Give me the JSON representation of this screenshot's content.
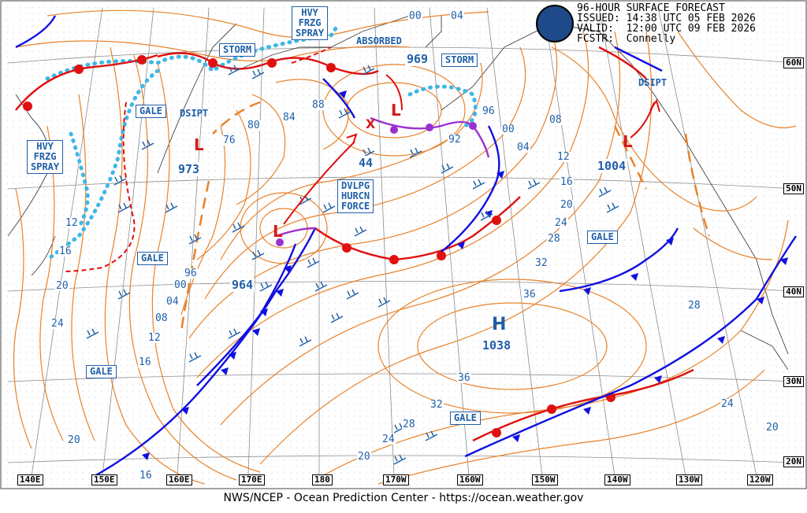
{
  "header": {
    "line1": "96-HOUR SURFACE FORECAST",
    "line2": "ISSUED: 14:38 UTC 05 FEB 2026",
    "line3": "VALID:  12:00 UTC 09 FEB 2026",
    "line4": "FCSTR:  Connelly"
  },
  "logo_text": "NOAA",
  "footer": "NWS/NCEP - Ocean Prediction Center - https://ocean.weather.gov",
  "longitudes": [
    "140E",
    "150E",
    "160E",
    "170E",
    "180",
    "170W",
    "160W",
    "150W",
    "140W",
    "130W",
    "120W"
  ],
  "latitudes": [
    "60N",
    "50N",
    "40N",
    "30N",
    "20N"
  ],
  "labels": {
    "hvy_frzg_spray_1": "HVY\nFRZG\nSPRAY",
    "hvy_frzg_spray_2": "HVY\nFRZG\nSPRAY",
    "storm_1": "STORM",
    "storm_2": "STORM",
    "gale_1": "GALE",
    "gale_2": "GALE",
    "gale_3": "GALE",
    "gale_4": "GALE",
    "gale_5": "GALE",
    "absorbed": "ABSORBED",
    "dsipt_1": "DSIPT",
    "dsipt_2": "DSIPT",
    "dvlpg": "DVLPG\nHURCN\nFORCE"
  },
  "centers": {
    "low_973": {
      "symbol": "L",
      "value": "973"
    },
    "low_969": {
      "symbol": "L",
      "value": "969"
    },
    "low_964": {
      "symbol": "L",
      "value": "964"
    },
    "low_1004": {
      "symbol": "L",
      "value": "1004"
    },
    "high_1038": {
      "symbol": "H",
      "value": "1038"
    },
    "forecast_x": "X",
    "low_44": "44"
  },
  "isobar_labels": [
    "00",
    "04",
    "88",
    "84",
    "80",
    "76",
    "96",
    "00",
    "92",
    "04",
    "08",
    "12",
    "16",
    "20",
    "24",
    "28",
    "32",
    "36",
    "36",
    "32",
    "28",
    "24",
    "20",
    "16",
    "12",
    "08",
    "04",
    "96",
    "00",
    "12",
    "16",
    "20",
    "24",
    "20",
    "16",
    "28",
    "24",
    "20"
  ],
  "colors": {
    "isobar": "#e8822a",
    "cold_front": "#1010e0",
    "warm_front": "#e01010",
    "occluded": "#9b30d0",
    "ice": "#3fb6e8",
    "label": "#1f5fa8",
    "grid": "#7a7a7a"
  }
}
